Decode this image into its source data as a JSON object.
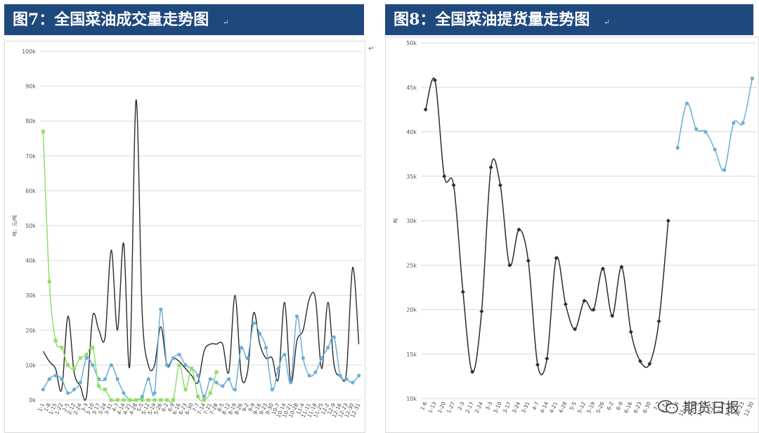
{
  "panels": [
    {
      "title": "图7：全国菜油成交量走势图",
      "mark": "↵"
    },
    {
      "title": "图8：全国菜油提货量走势图",
      "mark": "↵"
    }
  ],
  "watermark": "期货日报",
  "colors": {
    "title_bg": "#1f497d",
    "black_line": "#2b2b2b",
    "blue_line": "#6baed6",
    "green_line": "#8ee06a"
  },
  "chart_data": [
    {
      "type": "line",
      "title": "图7：全国菜油成交量走势图",
      "ylabel": "吨，元/吨",
      "ylim": [
        0,
        100000
      ],
      "yticks": [
        "0k",
        "10k",
        "20k",
        "30k",
        "40k",
        "50k",
        "60k",
        "70k",
        "80k",
        "90k",
        "100k"
      ],
      "xticks": [
        "1-1",
        "1-8",
        "1-15",
        "1-22",
        "2-5",
        "2-12",
        "2-24",
        "3-3",
        "3-10",
        "3-17",
        "3-24",
        "3-31",
        "4-7",
        "4-14",
        "4-21",
        "4-28",
        "5-5",
        "5-12",
        "5-19",
        "5-26",
        "6-2",
        "6-9",
        "6-16",
        "6-23",
        "6-30",
        "7-7",
        "7-14",
        "7-21",
        "7-28",
        "8-5",
        "8-12",
        "8-19",
        "8-26",
        "9-2",
        "9-9",
        "9-16",
        "9-23",
        "9-30",
        "10-7",
        "10-14",
        "10-21",
        "10-28",
        "11-4",
        "11-11",
        "11-18",
        "11-25",
        "12-2",
        "12-9",
        "12-16",
        "12-23",
        "12-30",
        "12-31"
      ],
      "series": [
        {
          "name": "",
          "color": "#2b2b2b",
          "marker": false,
          "values": [
            14000,
            11000,
            9000,
            3000,
            24000,
            8000,
            4000,
            1000,
            24000,
            20000,
            18000,
            43000,
            20000,
            45000,
            10000,
            86000,
            25000,
            10000,
            10000,
            21000,
            10000,
            12000,
            11000,
            9000,
            7000,
            5000,
            14000,
            16000,
            16000,
            16000,
            8000,
            30000,
            7000,
            8000,
            25000,
            16000,
            12000,
            12000,
            6000,
            28000,
            5000,
            17000,
            20000,
            29000,
            29000,
            9000,
            28000,
            10000,
            7000,
            8000,
            38000,
            16000
          ]
        },
        {
          "name": "",
          "color": "#6baed6",
          "marker": true,
          "values": [
            3000,
            6000,
            7000,
            6000,
            2000,
            3000,
            5000,
            12000,
            10000,
            6000,
            6000,
            10000,
            6000,
            2000,
            0,
            0,
            1000,
            6000,
            2000,
            26000,
            10000,
            12000,
            13000,
            10000,
            9000,
            7000,
            1000,
            6000,
            5000,
            4000,
            6000,
            3000,
            15000,
            12000,
            22000,
            19000,
            15000,
            3000,
            9000,
            13000,
            5000,
            24000,
            12000,
            7000,
            8000,
            12000,
            15000,
            18000,
            7000,
            6000,
            5000,
            7000
          ]
        },
        {
          "name": "",
          "color": "#8ee06a",
          "marker": true,
          "values": [
            77000,
            34000,
            17000,
            15000,
            10000,
            9000,
            12000,
            13000,
            15000,
            4000,
            3000,
            0,
            0,
            0,
            0,
            0,
            0,
            0,
            0,
            0,
            0,
            0,
            10000,
            3000,
            9000,
            1000,
            0,
            2000,
            8000,
            null,
            null,
            null,
            null,
            null,
            null,
            null,
            null,
            null,
            null,
            null,
            null,
            null,
            null,
            null,
            null,
            null,
            null,
            null,
            null,
            null,
            null,
            null
          ]
        }
      ]
    },
    {
      "type": "line",
      "title": "图8：全国菜油提货量走势图",
      "ylabel": "吨",
      "ylim": [
        10000,
        50000
      ],
      "yticks": [
        "10k",
        "15k",
        "20k",
        "25k",
        "30k",
        "35k",
        "40k",
        "45k",
        "50k"
      ],
      "xticks": [
        "1-6",
        "1-13",
        "1-20",
        "1-27",
        "2-3",
        "2-17",
        "2-24",
        "3-3",
        "3-10",
        "3-17",
        "3-24",
        "3-31",
        "4-7",
        "4-14",
        "4-21",
        "4-28",
        "5-5",
        "5-12",
        "5-19",
        "5-26",
        "6-2",
        "6-9",
        "6-16",
        "6-23",
        "6-30",
        "7-7",
        "7-14",
        "11-4",
        "11-11",
        "11-18",
        "11-25",
        "12-2",
        "12-9",
        "12-16",
        "12-23",
        "12-30"
      ],
      "series": [
        {
          "name": "",
          "color": "#2b2b2b",
          "marker": true,
          "values": [
            42500,
            45800,
            35000,
            34000,
            22000,
            13000,
            19800,
            36000,
            34000,
            25000,
            29000,
            25500,
            13800,
            14500,
            25800,
            20600,
            17800,
            21000,
            20000,
            24600,
            19300,
            24800,
            17500,
            14200,
            13900,
            18700,
            30000,
            null,
            null,
            null,
            null,
            null,
            null,
            null,
            null,
            null
          ]
        },
        {
          "name": "",
          "color": "#6baed6",
          "marker": true,
          "values": [
            null,
            null,
            null,
            null,
            null,
            null,
            null,
            null,
            null,
            null,
            null,
            null,
            null,
            null,
            null,
            null,
            null,
            null,
            null,
            null,
            null,
            null,
            null,
            null,
            null,
            null,
            null,
            38200,
            43200,
            40300,
            40000,
            38000,
            35700,
            41000,
            41000,
            46000
          ]
        }
      ]
    }
  ]
}
